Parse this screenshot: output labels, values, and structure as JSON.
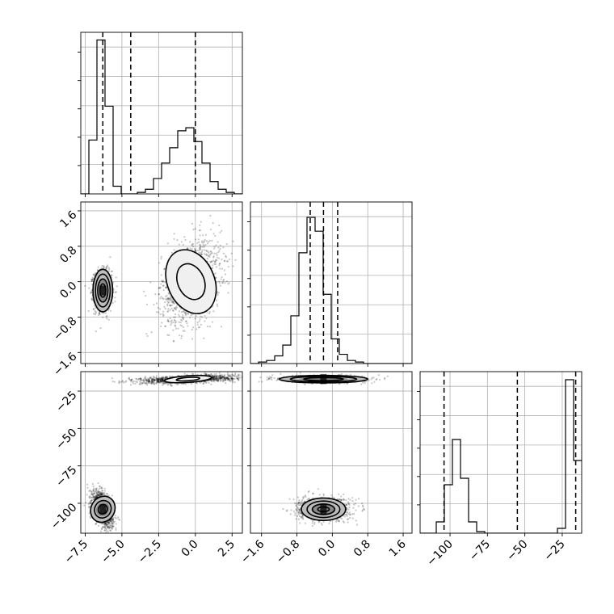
{
  "chart_data": {
    "type": "corner",
    "grid": true,
    "parameters": [
      {
        "ticks": [
          -7.5,
          -5.0,
          -2.5,
          0.0,
          2.5
        ],
        "tick_labels": [
          "−7.5",
          "−5.0",
          "−2.5",
          "0.0",
          "2.5"
        ],
        "range": [
          -7.8,
          3.2
        ],
        "quantile_lines": [
          -6.3,
          -4.4,
          0.0
        ],
        "histogram": {
          "bin_start": -7.8,
          "bin_width": 0.55,
          "heights": [
            0.0,
            0.35,
            1.0,
            0.57,
            0.05,
            0.0,
            0.0,
            0.01,
            0.03,
            0.1,
            0.2,
            0.3,
            0.41,
            0.43,
            0.34,
            0.2,
            0.08,
            0.03,
            0.01,
            0.0
          ],
          "ymax": 1.05
        }
      },
      {
        "ticks": [
          -1.6,
          -0.8,
          0.0,
          0.8,
          1.6
        ],
        "tick_labels": [
          "−1.6",
          "−0.8",
          "0.0",
          "0.8",
          "1.6"
        ],
        "range": [
          -1.85,
          1.8
        ],
        "quantile_lines": [
          -0.5,
          -0.2,
          0.12
        ],
        "histogram": {
          "bin_start": -1.85,
          "bin_width": 0.1825,
          "heights": [
            0.0,
            0.01,
            0.02,
            0.05,
            0.12,
            0.31,
            0.72,
            0.95,
            0.86,
            0.45,
            0.16,
            0.06,
            0.02,
            0.01,
            0.0,
            0.0,
            0.0,
            0.0,
            0.0,
            0.0
          ],
          "ymax": 1.05
        }
      },
      {
        "ticks": [
          -100,
          -75,
          -50,
          -25
        ],
        "tick_labels": [
          "−100",
          "−75",
          "−50",
          "−25"
        ],
        "range": [
          -120,
          -12
        ],
        "quantile_lines": [
          -104,
          -55,
          -16
        ],
        "histogram": {
          "bin_start": -120,
          "bin_width": 5.4,
          "heights": [
            0.0,
            0.0,
            0.07,
            0.3,
            0.58,
            0.34,
            0.07,
            0.01,
            0.0,
            0.0,
            0.0,
            0.0,
            0.0,
            0.0,
            0.0,
            0.0,
            0.0,
            0.03,
            0.95,
            0.45
          ],
          "ymax": 1.0
        }
      }
    ],
    "pairs": [
      {
        "x_param": 0,
        "y_param": 1,
        "modes": [
          {
            "center": [
              -6.3,
              -0.2
            ],
            "spread": [
              0.3,
              0.22
            ],
            "contour_levels": [
              [
                0.2,
                0.15
              ],
              [
                0.35,
                0.26
              ],
              [
                0.5,
                0.37
              ],
              [
                0.67,
                0.48
              ]
            ],
            "core": "dark"
          },
          {
            "center": [
              -0.3,
              0.0
            ],
            "spread": [
              1.0,
              0.45
            ],
            "contour_levels": [
              [
                0.9,
                0.42
              ],
              [
                1.6,
                0.75
              ]
            ],
            "tilt": 0.3,
            "core": "light"
          }
        ]
      },
      {
        "x_param": 0,
        "y_param": 2,
        "modes": [
          {
            "center": [
              -6.3,
              -104
            ],
            "spread": [
              0.35,
              5.0
            ],
            "contour_levels": [
              [
                0.3,
                3.3
              ],
              [
                0.55,
                6.0
              ],
              [
                0.8,
                9.0
              ]
            ],
            "tilt": -0.55,
            "core": "dark"
          },
          {
            "center": [
              -0.5,
              -17
            ],
            "spread": [
              1.6,
              1.2
            ],
            "contour_levels": [
              [
                0.8,
                1.1
              ],
              [
                1.6,
                2.2
              ]
            ],
            "tilt": 0.5,
            "core": "light"
          }
        ]
      },
      {
        "x_param": 1,
        "y_param": 2,
        "modes": [
          {
            "center": [
              -0.2,
              -104
            ],
            "spread": [
              0.28,
              3.6
            ],
            "contour_levels": [
              [
                0.13,
                1.6
              ],
              [
                0.25,
                3.5
              ],
              [
                0.37,
                5.5
              ],
              [
                0.5,
                7.5
              ]
            ],
            "core": "dark"
          },
          {
            "center": [
              -0.2,
              -17
            ],
            "spread": [
              0.45,
              1.1
            ],
            "contour_levels": [
              [
                0.45,
                1.0
              ],
              [
                0.75,
                1.8
              ],
              [
                1.0,
                2.5
              ]
            ],
            "core": "dark"
          }
        ]
      }
    ]
  },
  "colors": {
    "line": "#000000",
    "grid": "#b0b0b0",
    "scatter": "#000000"
  }
}
